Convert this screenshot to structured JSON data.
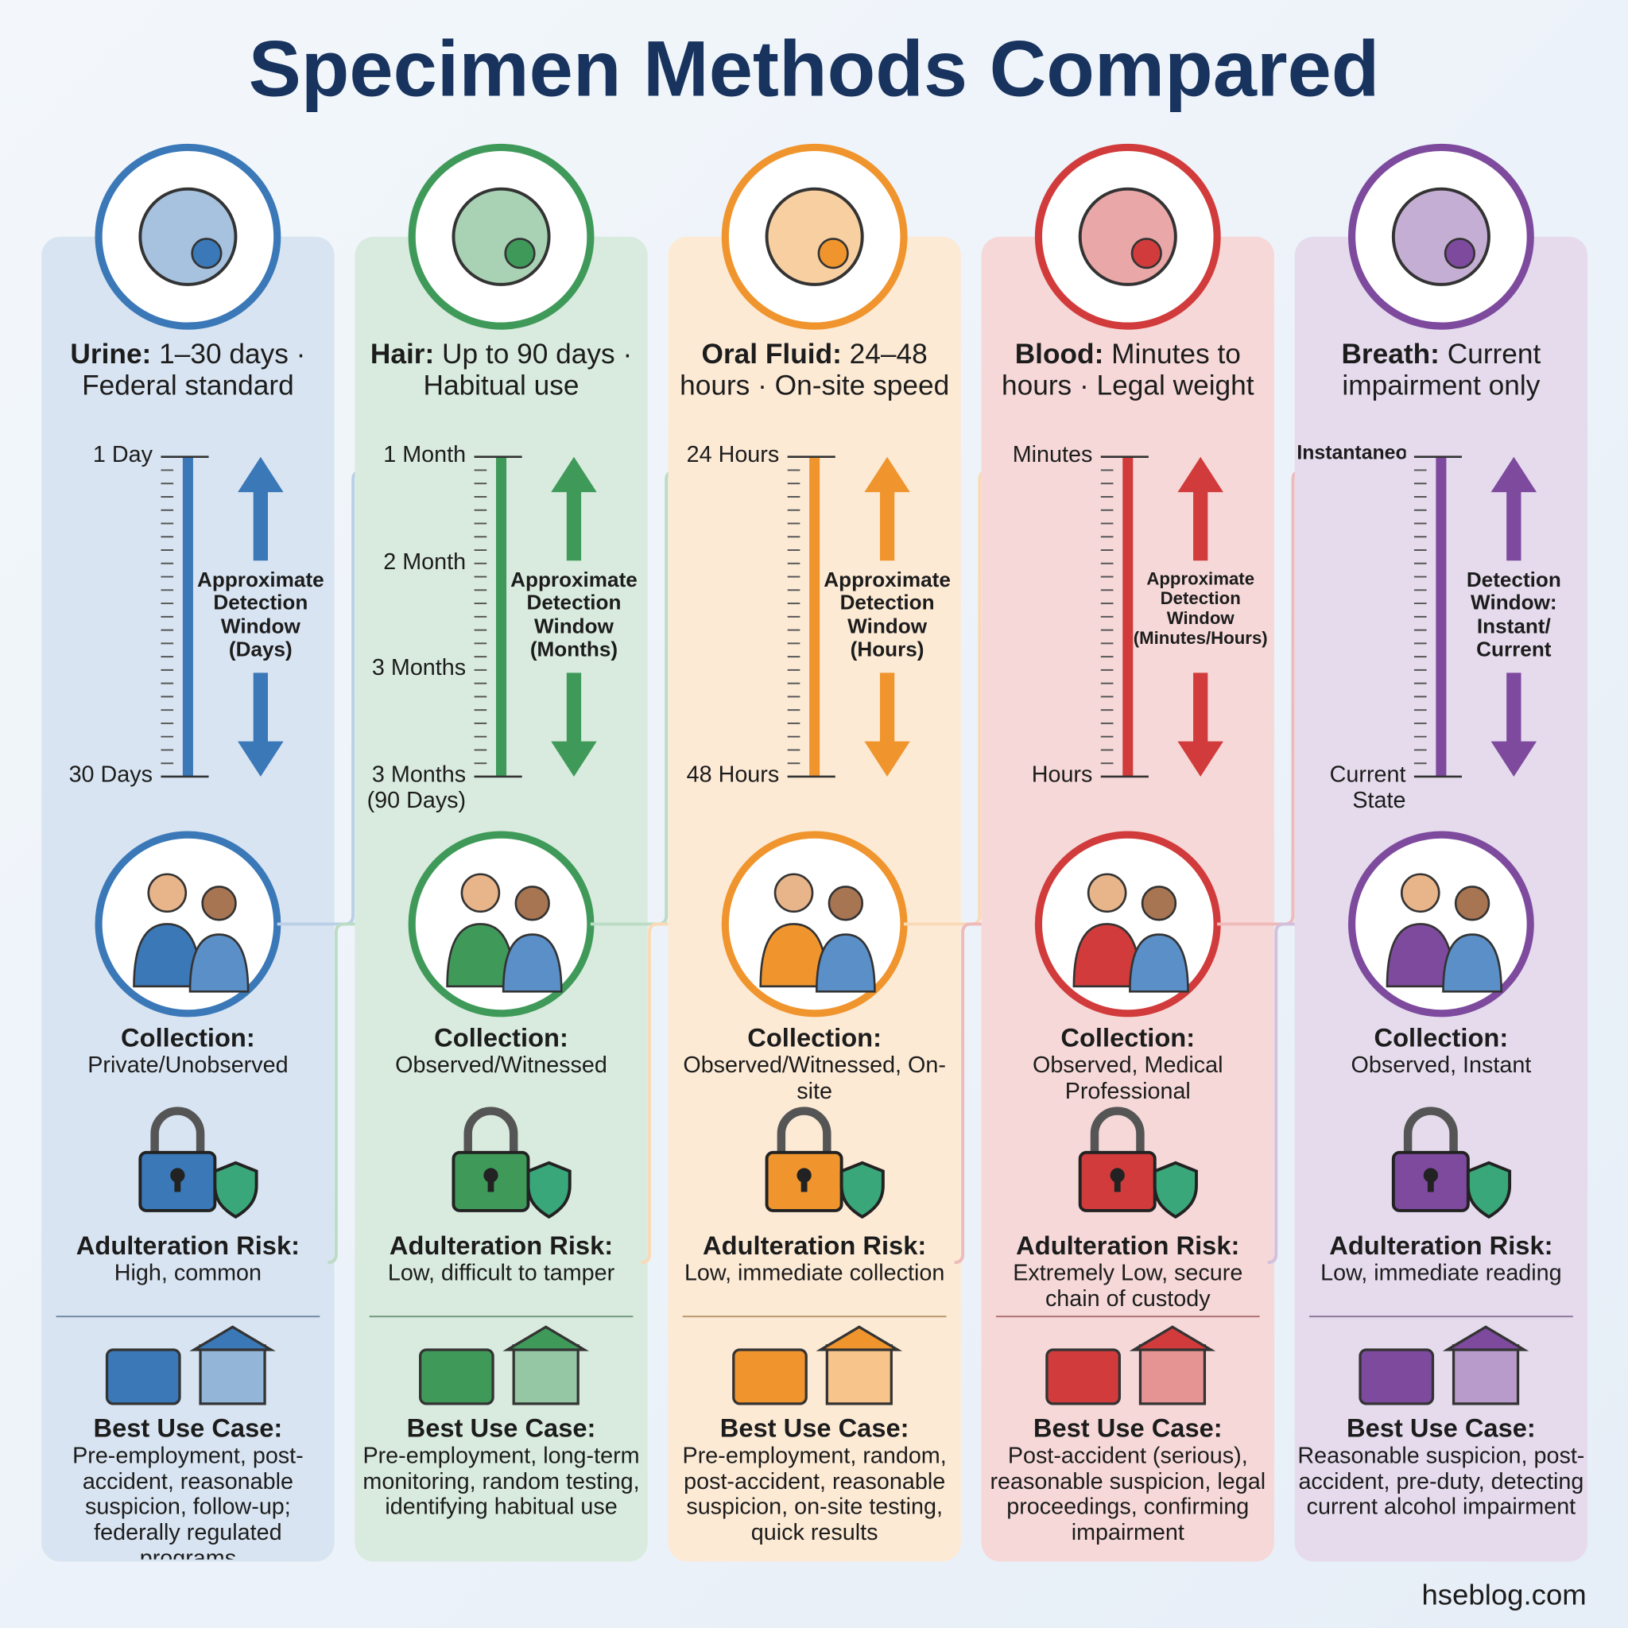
{
  "title": "Specimen Methods Compared",
  "columns": [
    {
      "name": "Urine:",
      "summary": "1–30 days · Federal standard",
      "color": "#3a78b8",
      "scale_labels": [
        "1 Day",
        "30 Days"
      ],
      "window_label": "Approximate Detection Window (Days)",
      "collection_title": "Collection:",
      "collection": "Private/Unobserved",
      "adulteration_title": "Adulteration Risk:",
      "adulteration": "High, common",
      "best_use_title": "Best Use Case:",
      "best_use": "Pre-employment, post-accident, reasonable suspicion, follow-up; federally regulated programs"
    },
    {
      "name": "Hair:",
      "summary": "Up to 90 days · Habitual use",
      "color": "#3f9a5a",
      "scale_labels": [
        "1 Month",
        "2 Month",
        "3 Months",
        "3 Months (90 Days)"
      ],
      "window_label": "Approximate Detection Window (Months)",
      "collection_title": "Collection:",
      "collection": "Observed/Witnessed",
      "adulteration_title": "Adulteration Risk:",
      "adulteration": "Low, difficult to tamper",
      "best_use_title": "Best Use Case:",
      "best_use": "Pre-employment, long-term monitoring, random testing, identifying habitual use"
    },
    {
      "name": "Oral Fluid:",
      "summary": "24–48 hours · On-site speed",
      "color": "#f0952e",
      "scale_labels": [
        "24 Hours",
        "48 Hours"
      ],
      "window_label": "Approximate Detection Window (Hours)",
      "collection_title": "Collection:",
      "collection": "Observed/Witnessed, On-site",
      "adulteration_title": "Adulteration Risk:",
      "adulteration": "Low, immediate collection",
      "best_use_title": "Best Use Case:",
      "best_use": "Pre-employment, random, post-accident, reasonable suspicion, on-site testing, quick results"
    },
    {
      "name": "Blood:",
      "summary": "Minutes to hours · Legal weight",
      "color": "#d13b3b",
      "scale_labels": [
        "Minutes",
        "Hours"
      ],
      "window_label": "Approximate Detection Window (Minutes/Hours)",
      "collection_title": "Collection:",
      "collection": "Observed, Medical Professional",
      "adulteration_title": "Adulteration Risk:",
      "adulteration": "Extremely Low, secure chain of custody",
      "best_use_title": "Best Use Case:",
      "best_use": "Post-accident (serious), reasonable suspicion, legal proceedings, confirming impairment"
    },
    {
      "name": "Breath:",
      "summary": "Current impairment only",
      "color": "#7d4a9e",
      "scale_labels": [
        "Instantaneous",
        "Current State"
      ],
      "window_label": "Detection Window: Instant/ Current",
      "collection_title": "Collection:",
      "collection": "Observed, Instant",
      "adulteration_title": "Adulteration Risk:",
      "adulteration": "Low, immediate reading",
      "best_use_title": "Best Use Case:",
      "best_use": "Reasonable suspicion, post-accident, pre-duty, detecting current alcohol impairment"
    }
  ],
  "footer": "hseblog.com"
}
